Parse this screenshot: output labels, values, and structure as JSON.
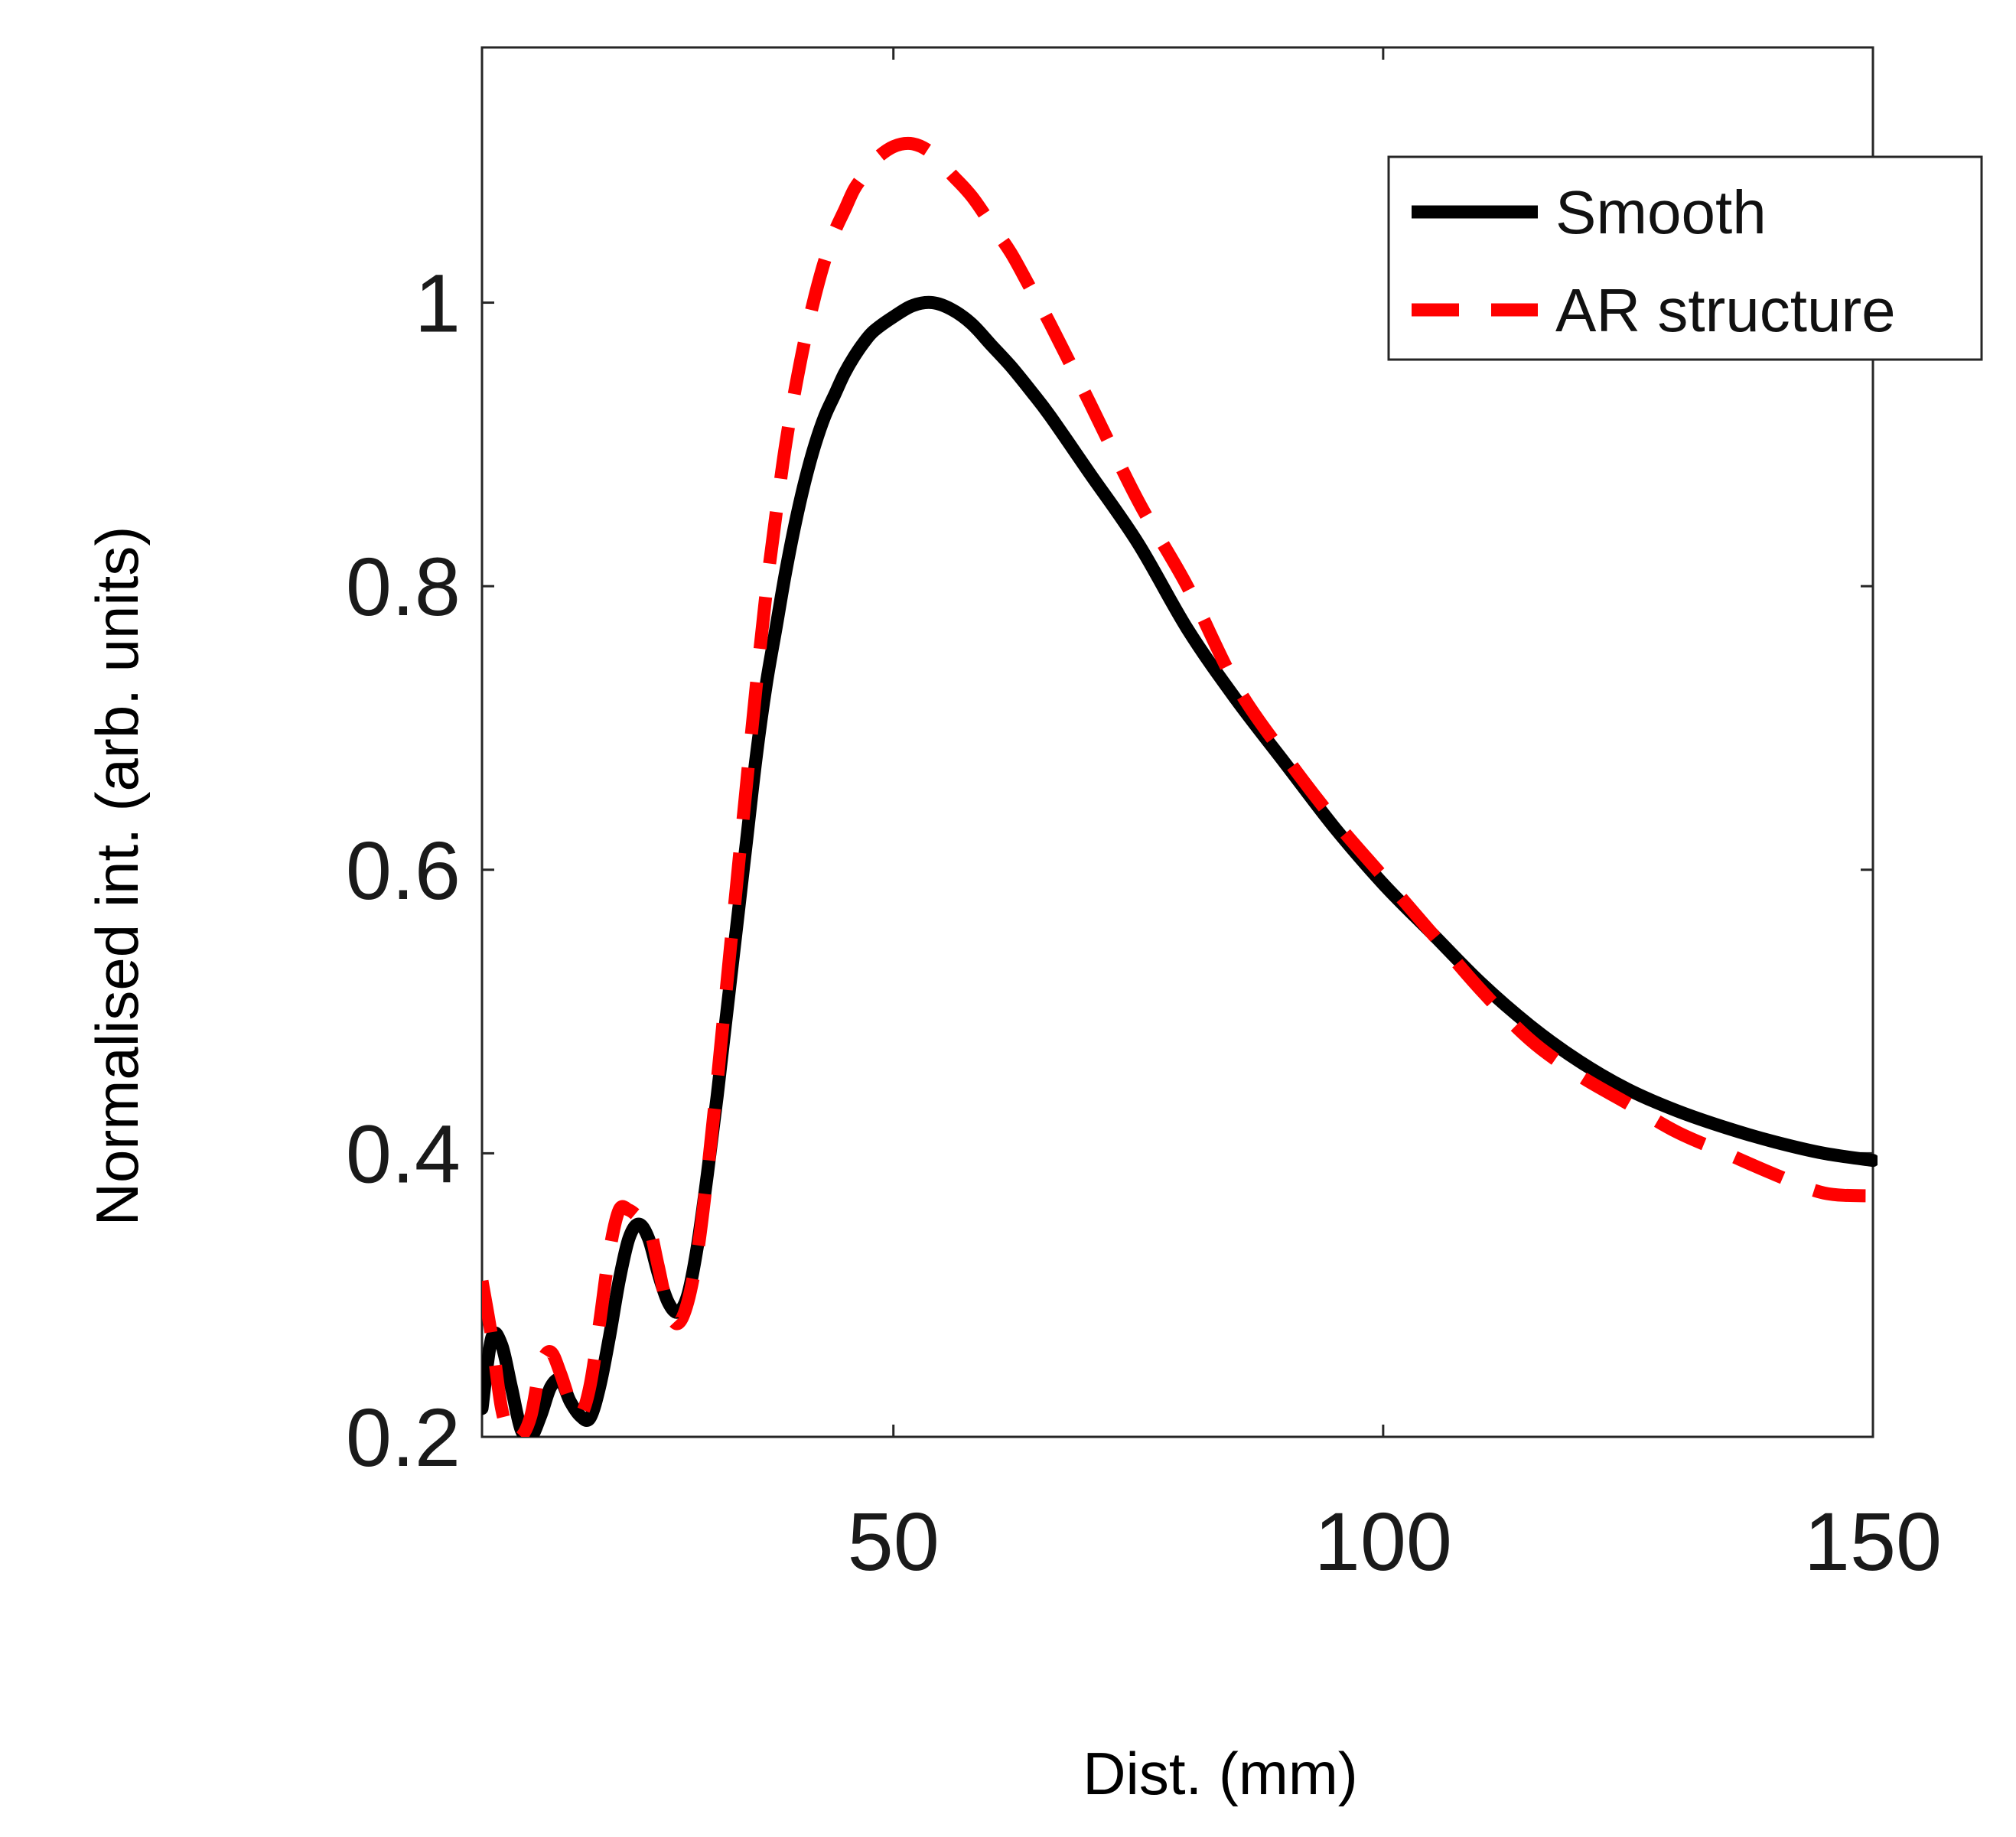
{
  "chart_data": {
    "type": "line",
    "title": "",
    "xlabel": "Dist. (mm)",
    "ylabel": "Normalised int. (arb. units)",
    "xlim": [
      8,
      150
    ],
    "ylim": [
      0.2,
      1.18
    ],
    "xticks": [
      50,
      100,
      150
    ],
    "xtick_labels": [
      "50",
      "100",
      "150"
    ],
    "yticks": [
      0.2,
      0.4,
      0.6,
      0.8,
      1.0
    ],
    "ytick_labels": [
      "0.2",
      "0.4",
      "0.6",
      "0.8",
      "1"
    ],
    "grid": false,
    "legend_position": "top-right",
    "series": [
      {
        "name": "Smooth",
        "color": "#000000",
        "style": "solid",
        "x": [
          8,
          9,
          10,
          11,
          12,
          13,
          14,
          15,
          16,
          17,
          18,
          19,
          20,
          21,
          22,
          23,
          24,
          25,
          26,
          27,
          28,
          29,
          30,
          31,
          32,
          33,
          34,
          35,
          36,
          37,
          38,
          39,
          40,
          41,
          42,
          43,
          44,
          45,
          46,
          47,
          48,
          50,
          52,
          54,
          56,
          58,
          60,
          62,
          64,
          66,
          70,
          75,
          80,
          85,
          90,
          95,
          100,
          105,
          110,
          115,
          120,
          125,
          130,
          135,
          140,
          145,
          150
        ],
        "y": [
          0.22,
          0.27,
          0.265,
          0.235,
          0.205,
          0.2,
          0.215,
          0.235,
          0.24,
          0.225,
          0.215,
          0.213,
          0.235,
          0.27,
          0.31,
          0.34,
          0.35,
          0.34,
          0.315,
          0.295,
          0.288,
          0.3,
          0.335,
          0.385,
          0.44,
          0.5,
          0.56,
          0.62,
          0.68,
          0.73,
          0.77,
          0.81,
          0.845,
          0.875,
          0.9,
          0.92,
          0.935,
          0.95,
          0.962,
          0.972,
          0.98,
          0.99,
          0.998,
          1.0,
          0.995,
          0.985,
          0.97,
          0.955,
          0.938,
          0.92,
          0.88,
          0.83,
          0.77,
          0.72,
          0.675,
          0.63,
          0.59,
          0.555,
          0.52,
          0.49,
          0.465,
          0.445,
          0.43,
          0.418,
          0.408,
          0.4,
          0.395
        ]
      },
      {
        "name": "AR structure",
        "color": "#ff0000",
        "style": "dashed",
        "x": [
          8,
          9,
          10,
          11,
          12,
          13,
          14,
          15,
          16,
          17,
          18,
          19,
          20,
          21,
          22,
          23,
          24,
          25,
          26,
          27,
          28,
          29,
          30,
          31,
          32,
          33,
          34,
          35,
          36,
          37,
          38,
          39,
          40,
          41,
          42,
          43,
          44,
          45,
          46,
          47,
          48,
          50,
          52,
          54,
          56,
          58,
          60,
          62,
          64,
          66,
          70,
          75,
          80,
          85,
          90,
          95,
          100,
          105,
          110,
          115,
          120,
          125,
          130,
          135,
          140,
          145,
          150
        ],
        "y": [
          0.31,
          0.27,
          0.22,
          0.2,
          0.2,
          0.215,
          0.25,
          0.26,
          0.245,
          0.225,
          0.215,
          0.235,
          0.28,
          0.33,
          0.36,
          0.36,
          0.355,
          0.35,
          0.32,
          0.29,
          0.28,
          0.295,
          0.33,
          0.385,
          0.45,
          0.52,
          0.59,
          0.66,
          0.73,
          0.795,
          0.85,
          0.9,
          0.94,
          0.975,
          1.005,
          1.03,
          1.05,
          1.065,
          1.08,
          1.09,
          1.1,
          1.11,
          1.112,
          1.105,
          1.09,
          1.075,
          1.055,
          1.035,
          1.01,
          0.985,
          0.93,
          0.86,
          0.8,
          0.73,
          0.68,
          0.635,
          0.595,
          0.555,
          0.515,
          0.48,
          0.455,
          0.435,
          0.415,
          0.4,
          0.385,
          0.372,
          0.37
        ]
      }
    ]
  }
}
